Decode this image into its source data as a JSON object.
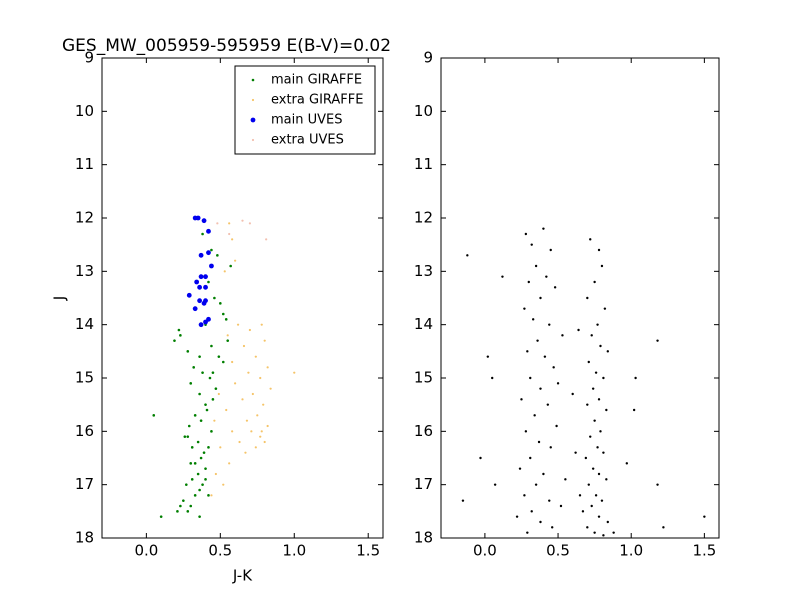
{
  "chart_data": [
    {
      "type": "scatter",
      "title": "GES_MW_005959-595959 E(B-V)=0.02",
      "xlabel": "J-K",
      "ylabel": "J",
      "xlim": [
        -0.3,
        1.6
      ],
      "xticks": [
        {
          "value": 0,
          "label": "0.0"
        },
        0.5,
        {
          "value": 1,
          "label": "1.0"
        },
        1.5
      ],
      "ylim": [
        18,
        9
      ],
      "yticks": [
        9,
        10,
        11,
        12,
        13,
        14,
        15,
        16,
        17,
        18
      ],
      "legend": "upper right",
      "series": [
        {
          "name": "main GIRAFFE",
          "color": "#007f00",
          "size": 1.3,
          "x": [
            0.33,
            0.38,
            0.44,
            0.48,
            0.42,
            0.46,
            0.5,
            0.52,
            0.4,
            0.55,
            0.23,
            0.28,
            0.36,
            0.32,
            0.38,
            0.43,
            0.47,
            0.52,
            0.22,
            0.44,
            0.3,
            0.36,
            0.4,
            0.45,
            0.33,
            0.41,
            0.37,
            0.29,
            0.44,
            0.26,
            0.31,
            0.35,
            0.39,
            0.42,
            0.37,
            0.33,
            0.28,
            0.4,
            0.35,
            0.3,
            0.31,
            0.27,
            0.36,
            0.4,
            0.42,
            0.25,
            0.33,
            0.38,
            0.21,
            0.3,
            0.23,
            0.36,
            0.28,
            0.19,
            0.05,
            0.1,
            0.45,
            0.49,
            0.54,
            0.57
          ],
          "values": [
            12.0,
            12.3,
            12.6,
            12.7,
            13.2,
            13.5,
            13.6,
            13.8,
            14.0,
            14.3,
            14.2,
            14.5,
            14.6,
            14.8,
            14.9,
            15.0,
            15.2,
            14.7,
            14.1,
            14.4,
            15.1,
            15.3,
            15.5,
            15.4,
            15.7,
            15.6,
            15.8,
            15.9,
            16.0,
            16.1,
            16.3,
            16.2,
            16.4,
            16.3,
            16.5,
            16.6,
            16.1,
            16.7,
            16.8,
            16.6,
            16.9,
            17.0,
            17.1,
            16.9,
            17.2,
            17.3,
            17.2,
            17.0,
            17.5,
            17.4,
            17.4,
            17.6,
            17.5,
            14.3,
            15.7,
            17.6,
            14.9,
            14.6,
            13.9,
            12.9
          ]
        },
        {
          "name": "extra GIRAFFE",
          "color": "#f5c469",
          "size": 1.1,
          "x": [
            0.55,
            0.62,
            0.7,
            0.78,
            0.8,
            0.66,
            0.74,
            0.58,
            0.82,
            0.69,
            0.77,
            0.6,
            0.84,
            0.72,
            0.65,
            0.79,
            0.54,
            0.75,
            0.68,
            0.82,
            0.58,
            0.71,
            0.77,
            0.63,
            0.8,
            0.5,
            0.74,
            0.67,
            0.56,
            0.78,
            0.47,
            0.52,
            0.44,
            1.0,
            0.56,
            0.58,
            0.6,
            0.53,
            0.46,
            0.49
          ],
          "values": [
            14.2,
            14.0,
            14.1,
            14.0,
            14.3,
            14.4,
            14.6,
            14.7,
            14.8,
            14.9,
            15.0,
            15.1,
            15.2,
            15.3,
            15.4,
            15.5,
            15.6,
            15.7,
            15.8,
            15.9,
            16.0,
            16.0,
            16.1,
            16.2,
            16.2,
            16.3,
            16.3,
            16.4,
            16.6,
            16.0,
            16.8,
            17.0,
            17.2,
            14.9,
            12.1,
            12.4,
            12.8,
            13.0,
            15.8,
            15.3
          ]
        },
        {
          "name": "main UVES",
          "color": "#0000ee",
          "size": 2.4,
          "x": [
            0.33,
            0.35,
            0.39,
            0.42,
            0.37,
            0.42,
            0.37,
            0.4,
            0.44,
            0.36,
            0.4,
            0.29,
            0.36,
            0.4,
            0.33,
            0.39,
            0.37,
            0.4,
            0.42,
            0.34
          ],
          "values": [
            12.0,
            12.0,
            12.05,
            12.25,
            12.7,
            12.65,
            13.1,
            13.1,
            12.9,
            13.3,
            13.3,
            13.45,
            13.55,
            13.55,
            13.7,
            13.6,
            14.0,
            13.95,
            13.9,
            13.2
          ]
        },
        {
          "name": "extra UVES",
          "color": "#f2c0b0",
          "size": 1.1,
          "x": [
            0.65,
            0.7,
            0.81,
            0.56,
            0.48
          ],
          "values": [
            12.05,
            12.1,
            12.4,
            12.3,
            12.1
          ]
        }
      ]
    },
    {
      "type": "scatter",
      "xlim": [
        -0.3,
        1.6
      ],
      "xticks": [
        {
          "value": 0,
          "label": "0.0"
        },
        0.5,
        {
          "value": 1,
          "label": "1.0"
        },
        1.5
      ],
      "ylim": [
        18,
        9
      ],
      "yticks": [
        9,
        10,
        11,
        12,
        13,
        14,
        15,
        16,
        17,
        18
      ],
      "series": [
        {
          "color": "#000000",
          "size": 1.2,
          "x": [
            0.28,
            0.32,
            0.4,
            0.45,
            0.35,
            0.3,
            0.42,
            0.38,
            0.27,
            0.33,
            0.44,
            0.36,
            0.29,
            0.41,
            0.47,
            0.31,
            0.38,
            0.25,
            0.43,
            0.34,
            0.49,
            0.28,
            0.37,
            0.45,
            0.31,
            0.24,
            0.4,
            0.35,
            0.27,
            0.44,
            0.32,
            0.22,
            0.38,
            0.29,
            0.46,
            0.52,
            0.55,
            0.5,
            0.53,
            0.48,
            0.72,
            0.78,
            0.8,
            0.75,
            0.7,
            0.82,
            0.77,
            0.73,
            0.79,
            0.84,
            0.71,
            0.76,
            0.81,
            0.74,
            0.78,
            0.7,
            0.83,
            0.75,
            0.79,
            0.72,
            0.77,
            0.81,
            0.69,
            0.74,
            0.78,
            0.83,
            0.71,
            0.76,
            0.8,
            0.73,
            0.67,
            0.78,
            0.84,
            0.7,
            0.75,
            0.81,
            0.65,
            0.62,
            0.6,
            0.64,
            -0.12,
            0.12,
            0.02,
            0.05,
            1.18,
            1.03,
            1.02,
            -0.03,
            0.07,
            1.18,
            1.22,
            1.5,
            -0.15,
            0.97,
            0.88
          ],
          "values": [
            12.3,
            12.5,
            12.2,
            12.6,
            12.9,
            13.2,
            13.1,
            13.5,
            13.7,
            13.9,
            14.0,
            14.3,
            14.5,
            14.6,
            14.8,
            15.0,
            15.2,
            15.4,
            15.5,
            15.7,
            15.9,
            16.0,
            16.2,
            16.3,
            16.5,
            16.7,
            16.8,
            17.0,
            17.2,
            17.3,
            17.5,
            17.6,
            17.7,
            17.9,
            17.8,
            17.4,
            16.9,
            15.1,
            14.2,
            13.3,
            12.4,
            12.6,
            12.9,
            13.2,
            13.5,
            13.7,
            14.0,
            14.2,
            14.4,
            14.5,
            14.7,
            14.9,
            15.0,
            15.2,
            15.4,
            15.5,
            15.6,
            15.8,
            16.0,
            16.1,
            16.3,
            16.4,
            16.5,
            16.7,
            16.8,
            16.9,
            17.0,
            17.2,
            17.3,
            17.4,
            17.5,
            17.6,
            17.7,
            17.8,
            17.9,
            17.95,
            17.2,
            16.4,
            15.3,
            14.1,
            12.7,
            13.1,
            14.6,
            15.0,
            14.3,
            15.0,
            15.6,
            16.5,
            17.0,
            17.0,
            17.8,
            17.6,
            17.3,
            16.6,
            17.9
          ]
        }
      ]
    }
  ]
}
